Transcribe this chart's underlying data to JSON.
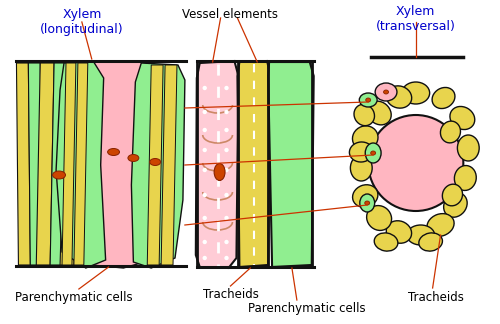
{
  "bg_color": "#ffffff",
  "pink": "#FFB6C1",
  "light_pink": "#FFCCD6",
  "yellow": "#E8D44D",
  "green": "#90EE90",
  "dark": "#111111",
  "orange": "#CC4400",
  "arrow_color": "#CC3300",
  "label_color": "#000000",
  "blue_label": "#0000CC",
  "label_xylem_long": "Xylem\n(longitudinal)",
  "label_xylem_trans": "Xylem\n(transversal)",
  "label_vessel": "Vessel elements",
  "label_par1": "Parenchymatic cells",
  "label_par2": "Parenchymatic cells",
  "label_trach1": "Tracheids",
  "label_trach2": "Tracheids"
}
